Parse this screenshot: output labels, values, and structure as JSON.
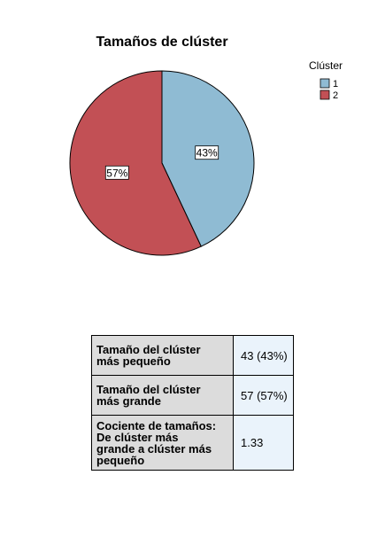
{
  "chart_data": {
    "type": "pie",
    "title": "Tamaños de clúster",
    "legend_title": "Clúster",
    "legend_position": "top-right",
    "slices": [
      {
        "label": "1",
        "value": 43,
        "percent_label": "43%",
        "color": "#8fbbd3"
      },
      {
        "label": "2",
        "value": 57,
        "percent_label": "57%",
        "color": "#c25055"
      }
    ]
  },
  "summary_table": {
    "rows": [
      {
        "label": "Tamaño del clúster\nmás pequeño",
        "value": "43 (43%)"
      },
      {
        "label": "Tamaño del clúster\nmás grande",
        "value": "57 (57%)"
      },
      {
        "label": "Cociente de tamaños:\nDe clúster más\ngrande a clúster más\npequeño",
        "value": "1.33"
      }
    ]
  }
}
